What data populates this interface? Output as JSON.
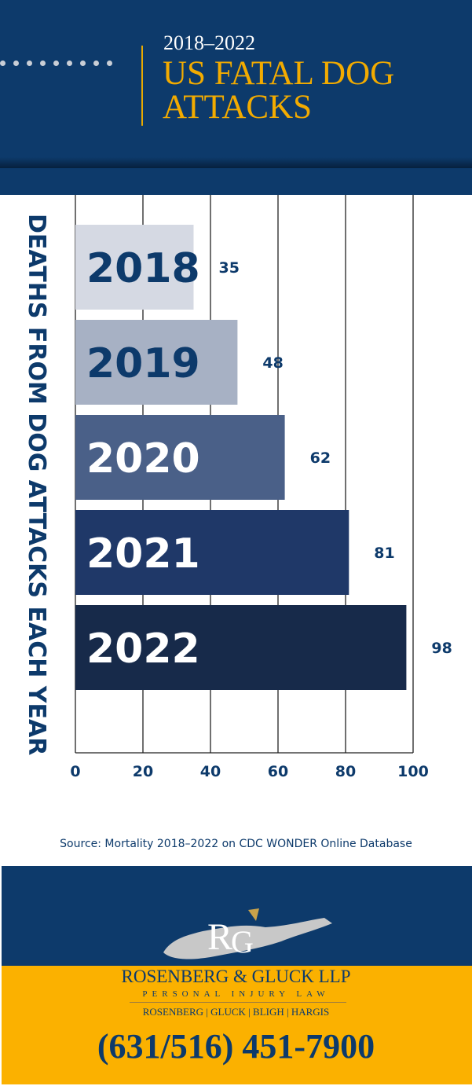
{
  "header": {
    "subtitle": "2018–2022",
    "title": "US FATAL DOG ATTACKS"
  },
  "chart_data": {
    "type": "bar",
    "orientation": "horizontal",
    "categories": [
      "2018",
      "2019",
      "2020",
      "2021",
      "2022"
    ],
    "values": [
      35,
      48,
      62,
      81,
      98
    ],
    "ylabel": "DEATHS FROM DOG ATTACKS EACH YEAR",
    "xlim": [
      0,
      100
    ],
    "xticks": [
      0,
      20,
      40,
      60,
      80,
      100
    ],
    "grid": true,
    "colors": [
      "#d5d9e3",
      "#a7b1c4",
      "#4a6088",
      "#1f3868",
      "#172a4a"
    ],
    "label_colors": [
      "#0d3a6b",
      "#0d3a6b",
      "#ffffff",
      "#ffffff",
      "#ffffff"
    ]
  },
  "source": "Source: Mortality 2018–2022 on CDC WONDER Online Database",
  "footer": {
    "logo_text": "RG",
    "firm": "ROSENBERG & GLUCK LLP",
    "tagline": "PERSONAL INJURY LAW",
    "partners": "ROSENBERG | GLUCK | BLIGH | HARGIS",
    "phone": "(631/516) 451-7900"
  }
}
